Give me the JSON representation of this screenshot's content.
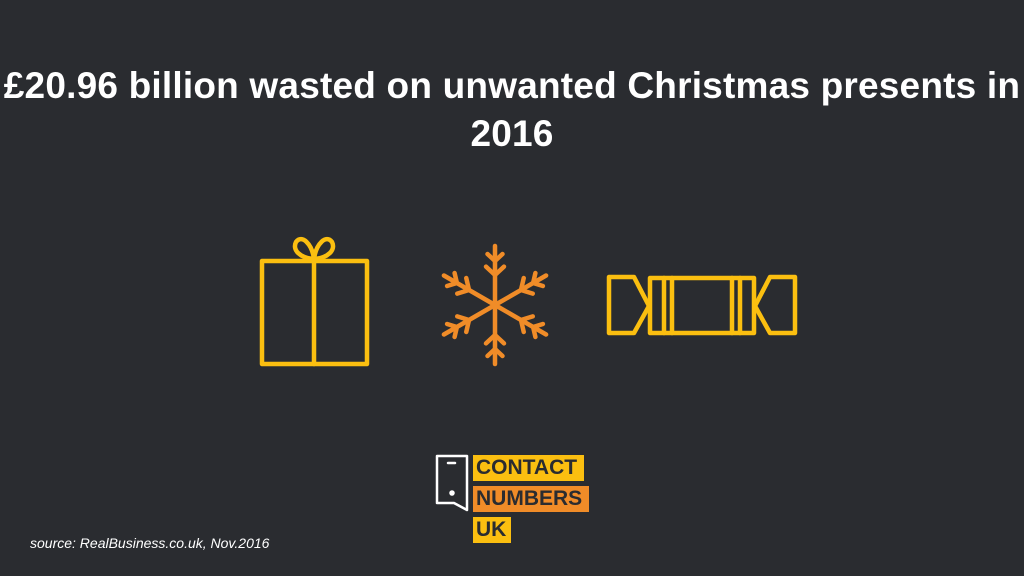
{
  "title": "£20.96 billion wasted on unwanted Christmas presents in 2016",
  "icons": [
    "gift-icon",
    "snowflake-icon",
    "christmas-cracker-icon"
  ],
  "colors": {
    "background": "#2a2c30",
    "yellow": "#fbbf10",
    "orange": "#f08c28"
  },
  "logo": {
    "line1": "CONTACT",
    "line2": "NUMBERS",
    "line3": "UK"
  },
  "source": "source: RealBusiness.co.uk, Nov.2016"
}
